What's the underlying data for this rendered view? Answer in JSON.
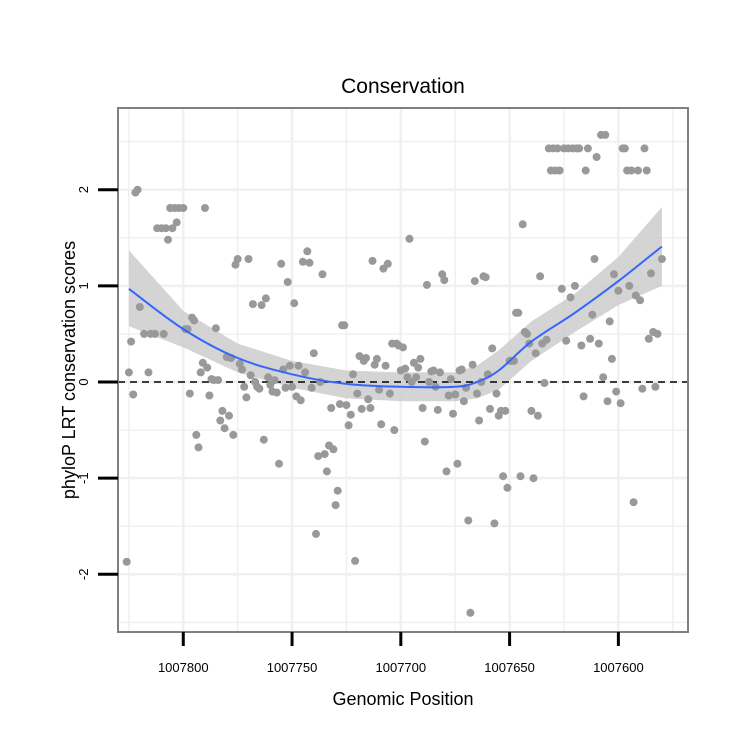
{
  "chart_data": {
    "type": "scatter",
    "title": "Conservation",
    "xlabel": "Genomic Position",
    "ylabel": "phyloP LRT conservation scores",
    "x_reversed": true,
    "xlim": [
      1007830,
      1007568
    ],
    "ylim": [
      -2.6,
      2.85
    ],
    "x_ticks": [
      1007800,
      1007750,
      1007700,
      1007650,
      1007600
    ],
    "x_tick_labels": [
      "1007800",
      "1007750",
      "1007700",
      "1007650",
      "1007600"
    ],
    "y_ticks": [
      -2,
      -1,
      0,
      1,
      2
    ],
    "y_tick_labels": [
      "-2",
      "-1",
      "0",
      "1",
      "2"
    ],
    "grid": true,
    "reference_line_y": 0,
    "colors": {
      "points": "#999999",
      "smooth_line": "#3366ff",
      "confidence_band": "#cccccc",
      "grid": "#f0f0f0",
      "frame": "#808080"
    },
    "smooth_line": {
      "x": [
        1007825,
        1007800,
        1007775,
        1007750,
        1007725,
        1007700,
        1007675,
        1007665,
        1007655,
        1007640,
        1007620,
        1007600,
        1007580
      ],
      "y": [
        0.97,
        0.55,
        0.25,
        0.08,
        -0.02,
        -0.05,
        -0.05,
        0.0,
        0.12,
        0.42,
        0.72,
        1.05,
        1.41
      ],
      "upper": [
        1.37,
        0.74,
        0.4,
        0.22,
        0.12,
        0.1,
        0.1,
        0.17,
        0.33,
        0.63,
        0.92,
        1.3,
        1.82
      ],
      "lower": [
        0.58,
        0.36,
        0.1,
        -0.06,
        -0.17,
        -0.2,
        -0.2,
        -0.17,
        -0.08,
        0.22,
        0.52,
        0.8,
        1.0
      ]
    },
    "points": [
      [
        1007826,
        -1.87
      ],
      [
        1007825,
        0.1
      ],
      [
        1007824,
        0.42
      ],
      [
        1007823,
        -0.13
      ],
      [
        1007822,
        1.97
      ],
      [
        1007821,
        2.0
      ],
      [
        1007820,
        0.78
      ],
      [
        1007818,
        0.5
      ],
      [
        1007816,
        0.1
      ],
      [
        1007815,
        0.5
      ],
      [
        1007813,
        0.5
      ],
      [
        1007812,
        1.6
      ],
      [
        1007810,
        1.6
      ],
      [
        1007809,
        0.5
      ],
      [
        1007808,
        1.6
      ],
      [
        1007807,
        1.48
      ],
      [
        1007806,
        1.81
      ],
      [
        1007805,
        1.6
      ],
      [
        1007804,
        1.81
      ],
      [
        1007803,
        1.66
      ],
      [
        1007802,
        1.81
      ],
      [
        1007800,
        1.81
      ],
      [
        1007799,
        0.55
      ],
      [
        1007798,
        0.55
      ],
      [
        1007797,
        -0.12
      ],
      [
        1007796,
        0.67
      ],
      [
        1007795,
        0.64
      ],
      [
        1007794,
        -0.55
      ],
      [
        1007793,
        -0.68
      ],
      [
        1007792,
        0.1
      ],
      [
        1007791,
        0.2
      ],
      [
        1007790,
        1.81
      ],
      [
        1007789,
        0.15
      ],
      [
        1007788,
        -0.14
      ],
      [
        1007787,
        0.03
      ],
      [
        1007786,
        0.02
      ],
      [
        1007785,
        0.56
      ],
      [
        1007784,
        0.02
      ],
      [
        1007783,
        -0.4
      ],
      [
        1007782,
        -0.3
      ],
      [
        1007781,
        -0.48
      ],
      [
        1007780,
        0.26
      ],
      [
        1007779,
        -0.35
      ],
      [
        1007778,
        0.25
      ],
      [
        1007777,
        -0.55
      ],
      [
        1007776,
        1.22
      ],
      [
        1007775,
        1.28
      ],
      [
        1007774,
        0.19
      ],
      [
        1007773,
        0.13
      ],
      [
        1007772,
        -0.05
      ],
      [
        1007771,
        -0.16
      ],
      [
        1007770,
        1.28
      ],
      [
        1007769,
        0.07
      ],
      [
        1007768,
        0.81
      ],
      [
        1007767,
        0.0
      ],
      [
        1007766,
        -0.05
      ],
      [
        1007765,
        -0.07
      ],
      [
        1007764,
        0.8
      ],
      [
        1007763,
        -0.6
      ],
      [
        1007762,
        0.87
      ],
      [
        1007761,
        0.05
      ],
      [
        1007760,
        -0.03
      ],
      [
        1007759,
        -0.1
      ],
      [
        1007758,
        0.02
      ],
      [
        1007757,
        -0.11
      ],
      [
        1007756,
        -0.85
      ],
      [
        1007755,
        1.23
      ],
      [
        1007754,
        0.13
      ],
      [
        1007753,
        -0.06
      ],
      [
        1007752,
        1.04
      ],
      [
        1007751,
        0.17
      ],
      [
        1007750,
        -0.05
      ],
      [
        1007749,
        0.82
      ],
      [
        1007748,
        -0.15
      ],
      [
        1007747,
        0.17
      ],
      [
        1007746,
        -0.19
      ],
      [
        1007745,
        1.25
      ],
      [
        1007744,
        0.1
      ],
      [
        1007743,
        1.36
      ],
      [
        1007742,
        1.24
      ],
      [
        1007741,
        -0.06
      ],
      [
        1007740,
        0.3
      ],
      [
        1007739,
        -1.58
      ],
      [
        1007738,
        -0.77
      ],
      [
        1007737,
        0.0
      ],
      [
        1007736,
        1.12
      ],
      [
        1007735,
        -0.75
      ],
      [
        1007734,
        -0.93
      ],
      [
        1007733,
        -0.66
      ],
      [
        1007732,
        -0.27
      ],
      [
        1007731,
        -0.7
      ],
      [
        1007730,
        -1.28
      ],
      [
        1007729,
        -1.13
      ],
      [
        1007728,
        -0.23
      ],
      [
        1007727,
        0.59
      ],
      [
        1007726,
        0.59
      ],
      [
        1007725,
        -0.24
      ],
      [
        1007724,
        -0.45
      ],
      [
        1007723,
        -0.34
      ],
      [
        1007722,
        0.08
      ],
      [
        1007721,
        -1.86
      ],
      [
        1007720,
        -0.12
      ],
      [
        1007719,
        0.27
      ],
      [
        1007718,
        -0.28
      ],
      [
        1007717,
        0.22
      ],
      [
        1007716,
        0.25
      ],
      [
        1007715,
        -0.18
      ],
      [
        1007714,
        -0.27
      ],
      [
        1007713,
        1.26
      ],
      [
        1007712,
        0.18
      ],
      [
        1007711,
        0.24
      ],
      [
        1007710,
        -0.08
      ],
      [
        1007709,
        -0.44
      ],
      [
        1007708,
        1.18
      ],
      [
        1007707,
        0.17
      ],
      [
        1007706,
        1.23
      ],
      [
        1007705,
        -0.12
      ],
      [
        1007704,
        0.4
      ],
      [
        1007703,
        -0.5
      ],
      [
        1007702,
        0.4
      ],
      [
        1007701,
        0.38
      ],
      [
        1007700,
        0.12
      ],
      [
        1007699,
        0.36
      ],
      [
        1007698,
        0.14
      ],
      [
        1007697,
        0.05
      ],
      [
        1007696,
        1.49
      ],
      [
        1007695,
        0.0
      ],
      [
        1007694,
        0.2
      ],
      [
        1007693,
        0.05
      ],
      [
        1007692,
        0.15
      ],
      [
        1007691,
        0.24
      ],
      [
        1007690,
        -0.27
      ],
      [
        1007689,
        -0.62
      ],
      [
        1007688,
        1.01
      ],
      [
        1007687,
        0.0
      ],
      [
        1007686,
        0.11
      ],
      [
        1007685,
        0.12
      ],
      [
        1007684,
        -0.05
      ],
      [
        1007683,
        -0.29
      ],
      [
        1007682,
        0.1
      ],
      [
        1007681,
        1.12
      ],
      [
        1007680,
        1.06
      ],
      [
        1007679,
        -0.93
      ],
      [
        1007678,
        -0.14
      ],
      [
        1007677,
        0.03
      ],
      [
        1007676,
        -0.33
      ],
      [
        1007675,
        -0.13
      ],
      [
        1007674,
        -0.85
      ],
      [
        1007673,
        0.12
      ],
      [
        1007672,
        0.13
      ],
      [
        1007671,
        -0.2
      ],
      [
        1007670,
        -0.06
      ],
      [
        1007669,
        -1.44
      ],
      [
        1007668,
        -2.4
      ],
      [
        1007667,
        0.18
      ],
      [
        1007666,
        1.05
      ],
      [
        1007665,
        -0.12
      ],
      [
        1007664,
        -0.4
      ],
      [
        1007663,
        0.0
      ],
      [
        1007662,
        1.1
      ],
      [
        1007661,
        1.09
      ],
      [
        1007660,
        0.08
      ],
      [
        1007659,
        -0.28
      ],
      [
        1007658,
        0.35
      ],
      [
        1007657,
        -1.47
      ],
      [
        1007656,
        -0.12
      ],
      [
        1007655,
        -0.35
      ],
      [
        1007654,
        -0.3
      ],
      [
        1007653,
        -0.98
      ],
      [
        1007652,
        -0.3
      ],
      [
        1007651,
        -1.1
      ],
      [
        1007650,
        0.22
      ],
      [
        1007649,
        0.22
      ],
      [
        1007648,
        0.22
      ],
      [
        1007647,
        0.72
      ],
      [
        1007646,
        0.72
      ],
      [
        1007645,
        -0.98
      ],
      [
        1007644,
        1.64
      ],
      [
        1007643,
        0.52
      ],
      [
        1007642,
        0.5
      ],
      [
        1007641,
        0.4
      ],
      [
        1007640,
        -0.3
      ],
      [
        1007639,
        -1.0
      ],
      [
        1007638,
        0.3
      ],
      [
        1007637,
        -0.35
      ],
      [
        1007636,
        1.1
      ],
      [
        1007635,
        0.4
      ],
      [
        1007634,
        -0.01
      ],
      [
        1007633,
        0.44
      ],
      [
        1007632,
        2.43
      ],
      [
        1007631,
        2.2
      ],
      [
        1007630,
        2.43
      ],
      [
        1007629,
        2.2
      ],
      [
        1007628,
        2.43
      ],
      [
        1007627,
        2.2
      ],
      [
        1007626,
        0.97
      ],
      [
        1007625,
        2.43
      ],
      [
        1007624,
        0.43
      ],
      [
        1007623,
        2.43
      ],
      [
        1007622,
        0.88
      ],
      [
        1007621,
        2.43
      ],
      [
        1007620,
        1.0
      ],
      [
        1007619,
        2.43
      ],
      [
        1007618,
        2.43
      ],
      [
        1007617,
        0.38
      ],
      [
        1007616,
        -0.15
      ],
      [
        1007615,
        2.2
      ],
      [
        1007614,
        2.43
      ],
      [
        1007613,
        0.45
      ],
      [
        1007612,
        0.7
      ],
      [
        1007611,
        1.28
      ],
      [
        1007610,
        2.34
      ],
      [
        1007609,
        0.4
      ],
      [
        1007608,
        2.57
      ],
      [
        1007607,
        0.05
      ],
      [
        1007606,
        2.57
      ],
      [
        1007605,
        -0.2
      ],
      [
        1007604,
        0.63
      ],
      [
        1007603,
        0.24
      ],
      [
        1007602,
        1.12
      ],
      [
        1007601,
        -0.1
      ],
      [
        1007600,
        0.95
      ],
      [
        1007599,
        -0.22
      ],
      [
        1007598,
        2.43
      ],
      [
        1007597,
        2.43
      ],
      [
        1007596,
        2.2
      ],
      [
        1007595,
        1.0
      ],
      [
        1007594,
        2.2
      ],
      [
        1007593,
        -1.25
      ],
      [
        1007592,
        0.9
      ],
      [
        1007591,
        2.2
      ],
      [
        1007590,
        0.85
      ],
      [
        1007589,
        -0.07
      ],
      [
        1007588,
        2.43
      ],
      [
        1007587,
        2.2
      ],
      [
        1007586,
        0.45
      ],
      [
        1007585,
        1.13
      ],
      [
        1007584,
        0.52
      ],
      [
        1007583,
        -0.05
      ],
      [
        1007582,
        0.5
      ],
      [
        1007580,
        1.28
      ]
    ]
  }
}
